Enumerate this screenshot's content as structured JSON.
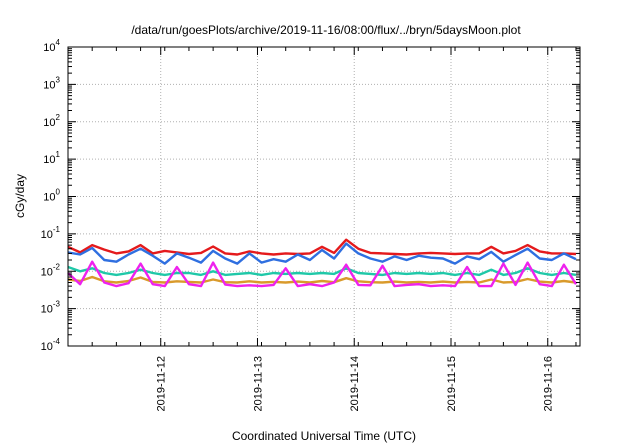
{
  "chart_data": {
    "type": "line",
    "title": "/data/run/goesPlots/archive/2019-11-16/08:00/flux/../bryn/5daysMoon.plot",
    "xlabel": "Coordinated Universal Time (UTC)",
    "ylabel": "cGy/day",
    "yscale": "log",
    "ylim": [
      0.0001,
      10000
    ],
    "xlim": [
      "2019-11-11T01:00",
      "2019-11-16T08:00"
    ],
    "grid": true,
    "x_ticks": [
      "2019-11-12",
      "2019-11-13",
      "2019-11-14",
      "2019-11-15",
      "2019-11-16"
    ],
    "y_ticks": [
      {
        "base": "10",
        "exp": "-4",
        "value": 0.0001
      },
      {
        "base": "10",
        "exp": "-3",
        "value": 0.001
      },
      {
        "base": "10",
        "exp": "-2",
        "value": 0.01
      },
      {
        "base": "10",
        "exp": "-1",
        "value": 0.1
      },
      {
        "base": "10",
        "exp": "0",
        "value": 1
      },
      {
        "base": "10",
        "exp": "1",
        "value": 10
      },
      {
        "base": "10",
        "exp": "2",
        "value": 100
      },
      {
        "base": "10",
        "exp": "3",
        "value": 1000
      },
      {
        "base": "10",
        "exp": "4",
        "value": 10000
      }
    ],
    "x": [
      "2019-11-11T01:00",
      "2019-11-11T04:00",
      "2019-11-11T07:00",
      "2019-11-11T10:00",
      "2019-11-11T13:00",
      "2019-11-11T16:00",
      "2019-11-11T19:00",
      "2019-11-11T22:00",
      "2019-11-12T01:00",
      "2019-11-12T04:00",
      "2019-11-12T07:00",
      "2019-11-12T10:00",
      "2019-11-12T13:00",
      "2019-11-12T16:00",
      "2019-11-12T19:00",
      "2019-11-12T22:00",
      "2019-11-13T01:00",
      "2019-11-13T04:00",
      "2019-11-13T07:00",
      "2019-11-13T10:00",
      "2019-11-13T13:00",
      "2019-11-13T16:00",
      "2019-11-13T19:00",
      "2019-11-13T22:00",
      "2019-11-14T01:00",
      "2019-11-14T04:00",
      "2019-11-14T07:00",
      "2019-11-14T10:00",
      "2019-11-14T13:00",
      "2019-11-14T16:00",
      "2019-11-14T19:00",
      "2019-11-14T22:00",
      "2019-11-15T01:00",
      "2019-11-15T04:00",
      "2019-11-15T07:00",
      "2019-11-15T10:00",
      "2019-11-15T13:00",
      "2019-11-15T16:00",
      "2019-11-15T19:00",
      "2019-11-15T22:00",
      "2019-11-16T01:00",
      "2019-11-16T04:00",
      "2019-11-16T07:00"
    ],
    "series": [
      {
        "color": "#e41a1c",
        "values": [
          0.045,
          0.032,
          0.05,
          0.038,
          0.03,
          0.034,
          0.05,
          0.03,
          0.035,
          0.032,
          0.029,
          0.031,
          0.046,
          0.03,
          0.028,
          0.034,
          0.03,
          0.028,
          0.03,
          0.029,
          0.03,
          0.045,
          0.031,
          0.07,
          0.04,
          0.031,
          0.03,
          0.029,
          0.028,
          0.03,
          0.031,
          0.03,
          0.029,
          0.03,
          0.03,
          0.045,
          0.03,
          0.035,
          0.05,
          0.034,
          0.03,
          0.03,
          0.029
        ]
      },
      {
        "color": "#2f6fe0",
        "values": [
          0.032,
          0.028,
          0.042,
          0.02,
          0.018,
          0.028,
          0.04,
          0.026,
          0.016,
          0.03,
          0.023,
          0.017,
          0.035,
          0.022,
          0.016,
          0.03,
          0.017,
          0.021,
          0.018,
          0.028,
          0.02,
          0.037,
          0.022,
          0.055,
          0.03,
          0.022,
          0.018,
          0.025,
          0.02,
          0.026,
          0.023,
          0.022,
          0.016,
          0.025,
          0.021,
          0.033,
          0.018,
          0.027,
          0.04,
          0.022,
          0.02,
          0.03,
          0.021
        ]
      },
      {
        "color": "#1fc8a8",
        "values": [
          0.013,
          0.01,
          0.012,
          0.009,
          0.008,
          0.009,
          0.011,
          0.009,
          0.008,
          0.009,
          0.009,
          0.008,
          0.01,
          0.008,
          0.0085,
          0.009,
          0.008,
          0.009,
          0.0085,
          0.009,
          0.0085,
          0.009,
          0.0085,
          0.012,
          0.009,
          0.0085,
          0.008,
          0.009,
          0.0085,
          0.009,
          0.0085,
          0.009,
          0.008,
          0.009,
          0.008,
          0.011,
          0.008,
          0.009,
          0.012,
          0.009,
          0.008,
          0.009,
          0.008
        ]
      },
      {
        "color": "#d99a2b",
        "values": [
          0.006,
          0.0055,
          0.007,
          0.0054,
          0.005,
          0.0055,
          0.0068,
          0.0052,
          0.005,
          0.0054,
          0.0052,
          0.005,
          0.006,
          0.0051,
          0.005,
          0.0054,
          0.005,
          0.0052,
          0.005,
          0.0053,
          0.005,
          0.0055,
          0.0051,
          0.0065,
          0.0054,
          0.0051,
          0.005,
          0.0053,
          0.005,
          0.0052,
          0.005,
          0.0053,
          0.005,
          0.0052,
          0.005,
          0.006,
          0.005,
          0.0052,
          0.0062,
          0.0053,
          0.005,
          0.0055,
          0.005
        ]
      },
      {
        "color": "#ee22ee",
        "values": [
          0.009,
          0.0045,
          0.018,
          0.005,
          0.004,
          0.0048,
          0.016,
          0.0045,
          0.004,
          0.013,
          0.0045,
          0.004,
          0.017,
          0.0044,
          0.004,
          0.0042,
          0.004,
          0.0043,
          0.012,
          0.004,
          0.0045,
          0.004,
          0.005,
          0.015,
          0.0043,
          0.0042,
          0.014,
          0.004,
          0.0043,
          0.0045,
          0.004,
          0.0042,
          0.004,
          0.013,
          0.004,
          0.004,
          0.016,
          0.0043,
          0.017,
          0.0045,
          0.004,
          0.015,
          0.0045
        ]
      }
    ]
  }
}
